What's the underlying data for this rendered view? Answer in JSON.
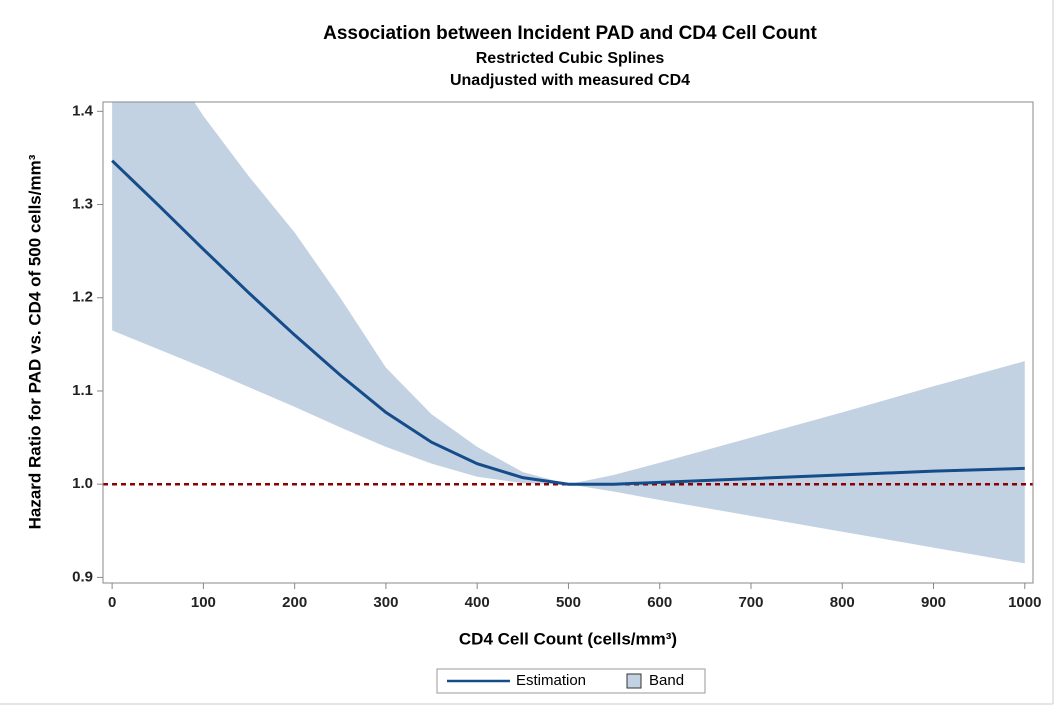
{
  "chart_data": {
    "type": "line-band",
    "title": "Association between Incident PAD and CD4 Cell Count",
    "subtitle": "Restricted Cubic Splines",
    "subtitle2": "Unadjusted with measured CD4",
    "x_label": "CD4 Cell Count (cells/mm³)",
    "y_label": "Hazard Ratio for PAD vs. CD4 of 500 cells/mm³",
    "x": [
      0,
      50,
      100,
      150,
      200,
      250,
      300,
      350,
      400,
      450,
      500,
      550,
      600,
      700,
      800,
      900,
      1000
    ],
    "series": [
      {
        "name": "Estimation",
        "color": "#154c8a",
        "values": [
          1.347,
          1.3,
          1.252,
          1.205,
          1.16,
          1.117,
          1.077,
          1.045,
          1.022,
          1.007,
          1.0,
          1.0,
          1.002,
          1.006,
          1.01,
          1.014,
          1.017
        ]
      },
      {
        "name": "Band",
        "color": "#c3d2e2",
        "lower": [
          1.165,
          1.145,
          1.125,
          1.104,
          1.083,
          1.061,
          1.04,
          1.022,
          1.008,
          1.001,
          1.0,
          0.992,
          0.983,
          0.966,
          0.949,
          0.932,
          0.915
        ],
        "upper": [
          1.55,
          1.47,
          1.395,
          1.33,
          1.27,
          1.2,
          1.125,
          1.075,
          1.04,
          1.013,
          1.0,
          1.01,
          1.023,
          1.05,
          1.077,
          1.105,
          1.132
        ]
      }
    ],
    "reference_line": {
      "y": 1,
      "color": "#8b0000"
    },
    "xlim": [
      -10,
      1009
    ],
    "ylim": [
      0.894,
      1.41
    ],
    "xticks": [
      0,
      100,
      200,
      300,
      400,
      500,
      600,
      700,
      800,
      900,
      1000
    ],
    "yticks": [
      0.9,
      {
        "value": 1,
        "label": "1.0"
      },
      1.1,
      1.2,
      1.3,
      1.4
    ]
  }
}
